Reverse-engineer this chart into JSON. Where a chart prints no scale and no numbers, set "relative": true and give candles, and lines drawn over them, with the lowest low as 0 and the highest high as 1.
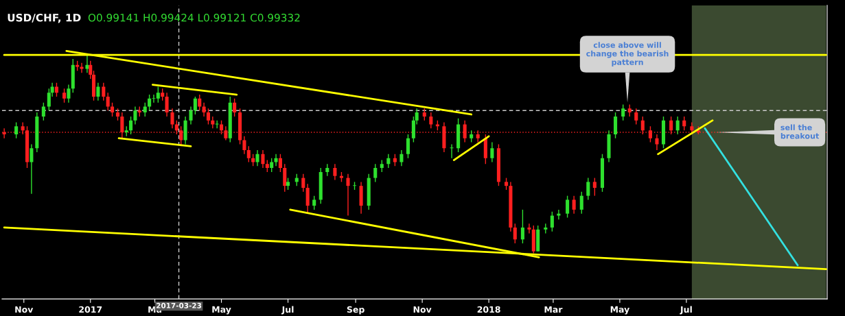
{
  "chart_data": {
    "type": "candlestick",
    "title": "USD/CHF, 1D",
    "subtitle": "O0.99141 H0.99424 L0.99121 C0.99332",
    "relative": true,
    "x": [
      "2016-10-14",
      "2016-10-25",
      "2016-10-31",
      "2016-11-04",
      "2016-11-08",
      "2016-11-13",
      "2016-11-19",
      "2016-11-24",
      "2016-11-27",
      "2016-12-01",
      "2016-12-08",
      "2016-12-12",
      "2016-12-16",
      "2016-12-20",
      "2016-12-24",
      "2016-12-29",
      "2017-01-01",
      "2017-01-04",
      "2017-01-08",
      "2017-01-13",
      "2017-01-17",
      "2017-01-21",
      "2017-01-26",
      "2017-01-30",
      "2017-02-03",
      "2017-02-07",
      "2017-02-11",
      "2017-02-15",
      "2017-02-20",
      "2017-02-24",
      "2017-02-28",
      "2017-03-04",
      "2017-03-08",
      "2017-03-12",
      "2017-03-17",
      "2017-03-21",
      "2017-03-25",
      "2017-03-29",
      "2017-04-03",
      "2017-04-07",
      "2017-04-11",
      "2017-04-15",
      "2017-04-19",
      "2017-04-23",
      "2017-04-27",
      "2017-05-01",
      "2017-05-05",
      "2017-05-09",
      "2017-05-13",
      "2017-05-18",
      "2017-05-22",
      "2017-05-26",
      "2017-05-30",
      "2017-06-03",
      "2017-06-08",
      "2017-06-12",
      "2017-06-16",
      "2017-06-20",
      "2017-06-24",
      "2017-06-28",
      "2017-07-01",
      "2017-07-09",
      "2017-07-15",
      "2017-07-19",
      "2017-07-25",
      "2017-07-31",
      "2017-08-06",
      "2017-08-13",
      "2017-08-19",
      "2017-08-25",
      "2017-08-31",
      "2017-09-06",
      "2017-09-13",
      "2017-09-19",
      "2017-09-25",
      "2017-10-01",
      "2017-10-07",
      "2017-10-13",
      "2017-10-19",
      "2017-10-24",
      "2017-10-27",
      "2017-11-03",
      "2017-11-09",
      "2017-11-15",
      "2017-11-21",
      "2017-11-28",
      "2017-12-04",
      "2017-12-10",
      "2017-12-16",
      "2017-12-22",
      "2017-12-29",
      "2018-01-04",
      "2018-01-10",
      "2018-01-17",
      "2018-01-21",
      "2018-01-25",
      "2018-02-01",
      "2018-02-07",
      "2018-02-11",
      "2018-02-15",
      "2018-02-22",
      "2018-02-28",
      "2018-03-06",
      "2018-03-14",
      "2018-03-20",
      "2018-03-27",
      "2018-04-02",
      "2018-04-08",
      "2018-04-15",
      "2018-04-21",
      "2018-04-27",
      "2018-05-04",
      "2018-05-10",
      "2018-05-16",
      "2018-05-22",
      "2018-05-29",
      "2018-06-04",
      "2018-06-10",
      "2018-06-17",
      "2018-06-23",
      "2018-06-29",
      "2018-07-06",
      "2018-07-12"
    ],
    "ohlc": [
      [
        0.61,
        0.63,
        0.58,
        0.6
      ],
      [
        0.6,
        0.66,
        0.58,
        0.64
      ],
      [
        0.64,
        0.66,
        0.6,
        0.62
      ],
      [
        0.62,
        0.64,
        0.43,
        0.46
      ],
      [
        0.46,
        0.55,
        0.3,
        0.53
      ],
      [
        0.53,
        0.71,
        0.51,
        0.69
      ],
      [
        0.69,
        0.76,
        0.67,
        0.74
      ],
      [
        0.74,
        0.83,
        0.72,
        0.81
      ],
      [
        0.81,
        0.86,
        0.79,
        0.84
      ],
      [
        0.84,
        0.86,
        0.79,
        0.81
      ],
      [
        0.81,
        0.83,
        0.76,
        0.78
      ],
      [
        0.78,
        0.85,
        0.76,
        0.83
      ],
      [
        0.83,
        0.98,
        0.81,
        0.95
      ],
      [
        0.95,
        0.97,
        0.92,
        0.94
      ],
      [
        0.94,
        0.96,
        0.91,
        0.93
      ],
      [
        0.93,
        1.0,
        0.91,
        0.95
      ],
      [
        0.95,
        0.97,
        0.88,
        0.9
      ],
      [
        0.9,
        0.92,
        0.77,
        0.79
      ],
      [
        0.79,
        0.86,
        0.77,
        0.84
      ],
      [
        0.84,
        0.86,
        0.77,
        0.79
      ],
      [
        0.79,
        0.81,
        0.72,
        0.74
      ],
      [
        0.74,
        0.76,
        0.69,
        0.71
      ],
      [
        0.71,
        0.73,
        0.67,
        0.69
      ],
      [
        0.69,
        0.71,
        0.58,
        0.61
      ],
      [
        0.61,
        0.64,
        0.59,
        0.62
      ],
      [
        0.62,
        0.69,
        0.6,
        0.67
      ],
      [
        0.67,
        0.74,
        0.65,
        0.72
      ],
      [
        0.72,
        0.74,
        0.69,
        0.71
      ],
      [
        0.71,
        0.76,
        0.69,
        0.74
      ],
      [
        0.74,
        0.8,
        0.72,
        0.78
      ],
      [
        0.78,
        0.8,
        0.76,
        0.78
      ],
      [
        0.78,
        0.84,
        0.76,
        0.81
      ],
      [
        0.81,
        0.83,
        0.77,
        0.79
      ],
      [
        0.79,
        0.81,
        0.69,
        0.71
      ],
      [
        0.71,
        0.73,
        0.63,
        0.65
      ],
      [
        0.65,
        0.67,
        0.6,
        0.62
      ],
      [
        0.62,
        0.64,
        0.54,
        0.57
      ],
      [
        0.57,
        0.69,
        0.55,
        0.67
      ],
      [
        0.67,
        0.74,
        0.65,
        0.72
      ],
      [
        0.72,
        0.79,
        0.7,
        0.78
      ],
      [
        0.78,
        0.8,
        0.72,
        0.74
      ],
      [
        0.74,
        0.76,
        0.69,
        0.71
      ],
      [
        0.71,
        0.73,
        0.65,
        0.67
      ],
      [
        0.67,
        0.69,
        0.63,
        0.65
      ],
      [
        0.65,
        0.67,
        0.63,
        0.65
      ],
      [
        0.65,
        0.67,
        0.6,
        0.62
      ],
      [
        0.62,
        0.64,
        0.57,
        0.58
      ],
      [
        0.58,
        0.79,
        0.56,
        0.76
      ],
      [
        0.76,
        0.78,
        0.69,
        0.71
      ],
      [
        0.71,
        0.73,
        0.55,
        0.57
      ],
      [
        0.57,
        0.59,
        0.5,
        0.52
      ],
      [
        0.52,
        0.54,
        0.46,
        0.48
      ],
      [
        0.48,
        0.5,
        0.44,
        0.46
      ],
      [
        0.46,
        0.52,
        0.44,
        0.5
      ],
      [
        0.5,
        0.52,
        0.43,
        0.45
      ],
      [
        0.45,
        0.47,
        0.41,
        0.43
      ],
      [
        0.43,
        0.48,
        0.41,
        0.46
      ],
      [
        0.46,
        0.5,
        0.44,
        0.48
      ],
      [
        0.48,
        0.5,
        0.41,
        0.43
      ],
      [
        0.43,
        0.45,
        0.31,
        0.34
      ],
      [
        0.34,
        0.38,
        0.32,
        0.36
      ],
      [
        0.36,
        0.4,
        0.34,
        0.38
      ],
      [
        0.38,
        0.4,
        0.31,
        0.33
      ],
      [
        0.33,
        0.35,
        0.2,
        0.24
      ],
      [
        0.24,
        0.29,
        0.22,
        0.27
      ],
      [
        0.27,
        0.43,
        0.25,
        0.41
      ],
      [
        0.41,
        0.45,
        0.39,
        0.43
      ],
      [
        0.43,
        0.45,
        0.37,
        0.39
      ],
      [
        0.39,
        0.41,
        0.36,
        0.38
      ],
      [
        0.38,
        0.4,
        0.19,
        0.34
      ],
      [
        0.34,
        0.36,
        0.32,
        0.34
      ],
      [
        0.34,
        0.36,
        0.2,
        0.24
      ],
      [
        0.24,
        0.4,
        0.22,
        0.38
      ],
      [
        0.38,
        0.45,
        0.36,
        0.43
      ],
      [
        0.43,
        0.47,
        0.41,
        0.45
      ],
      [
        0.45,
        0.5,
        0.43,
        0.48
      ],
      [
        0.48,
        0.5,
        0.44,
        0.46
      ],
      [
        0.46,
        0.52,
        0.44,
        0.5
      ],
      [
        0.5,
        0.6,
        0.48,
        0.58
      ],
      [
        0.58,
        0.69,
        0.56,
        0.67
      ],
      [
        0.67,
        0.73,
        0.65,
        0.71
      ],
      [
        0.71,
        0.73,
        0.67,
        0.69
      ],
      [
        0.69,
        0.71,
        0.63,
        0.65
      ],
      [
        0.65,
        0.67,
        0.62,
        0.64
      ],
      [
        0.64,
        0.66,
        0.51,
        0.53
      ],
      [
        0.53,
        0.55,
        0.48,
        0.53
      ],
      [
        0.53,
        0.68,
        0.51,
        0.65
      ],
      [
        0.65,
        0.67,
        0.56,
        0.58
      ],
      [
        0.58,
        0.62,
        0.56,
        0.6
      ],
      [
        0.6,
        0.62,
        0.56,
        0.58
      ],
      [
        0.58,
        0.6,
        0.45,
        0.48
      ],
      [
        0.48,
        0.56,
        0.46,
        0.53
      ],
      [
        0.53,
        0.55,
        0.34,
        0.36
      ],
      [
        0.36,
        0.38,
        0.32,
        0.34
      ],
      [
        0.34,
        0.36,
        0.11,
        0.13
      ],
      [
        0.13,
        0.15,
        0.05,
        0.07
      ],
      [
        0.07,
        0.22,
        0.05,
        0.13
      ],
      [
        0.13,
        0.15,
        0.1,
        0.12
      ],
      [
        0.12,
        0.14,
        0.0,
        0.01
      ],
      [
        0.01,
        0.14,
        0.01,
        0.12
      ],
      [
        0.12,
        0.15,
        0.1,
        0.13
      ],
      [
        0.13,
        0.21,
        0.11,
        0.19
      ],
      [
        0.19,
        0.22,
        0.17,
        0.2
      ],
      [
        0.2,
        0.29,
        0.18,
        0.27
      ],
      [
        0.27,
        0.29,
        0.2,
        0.22
      ],
      [
        0.22,
        0.31,
        0.2,
        0.29
      ],
      [
        0.29,
        0.38,
        0.27,
        0.36
      ],
      [
        0.36,
        0.38,
        0.29,
        0.33
      ],
      [
        0.33,
        0.5,
        0.31,
        0.48
      ],
      [
        0.48,
        0.62,
        0.46,
        0.6
      ],
      [
        0.6,
        0.71,
        0.58,
        0.69
      ],
      [
        0.69,
        0.75,
        0.67,
        0.73
      ],
      [
        0.73,
        0.75,
        0.69,
        0.71
      ],
      [
        0.71,
        0.73,
        0.65,
        0.67
      ],
      [
        0.67,
        0.69,
        0.6,
        0.62
      ],
      [
        0.62,
        0.64,
        0.56,
        0.58
      ],
      [
        0.58,
        0.6,
        0.52,
        0.55
      ],
      [
        0.55,
        0.69,
        0.53,
        0.67
      ],
      [
        0.67,
        0.69,
        0.6,
        0.62
      ],
      [
        0.62,
        0.69,
        0.6,
        0.67
      ],
      [
        0.67,
        0.69,
        0.62,
        0.64
      ],
      [
        0.64,
        0.66,
        0.6,
        0.62
      ],
      [
        0.62,
        0.64,
        0.6,
        0.61
      ]
    ],
    "colors": [
      "#ff1f1f",
      "#2ee02e",
      "#ff1f1f",
      "#ff1f1f",
      "#2ee02e",
      "#2ee02e",
      "#2ee02e",
      "#2ee02e",
      "#2ee02e",
      "#ff1f1f",
      "#ff1f1f",
      "#2ee02e",
      "#2ee02e",
      "#ff1f1f",
      "#ff1f1f",
      "#2ee02e",
      "#ff1f1f",
      "#ff1f1f",
      "#2ee02e",
      "#ff1f1f",
      "#ff1f1f",
      "#ff1f1f",
      "#ff1f1f",
      "#ff1f1f",
      "#2ee02e",
      "#2ee02e",
      "#2ee02e",
      "#ff1f1f",
      "#2ee02e",
      "#2ee02e",
      "#2ee02e",
      "#2ee02e",
      "#ff1f1f",
      "#ff1f1f",
      "#ff1f1f",
      "#ff1f1f",
      "#ff1f1f",
      "#2ee02e",
      "#2ee02e",
      "#2ee02e",
      "#ff1f1f",
      "#ff1f1f",
      "#ff1f1f",
      "#ff1f1f",
      "#2ee02e",
      "#ff1f1f",
      "#ff1f1f",
      "#2ee02e",
      "#ff1f1f",
      "#ff1f1f",
      "#ff1f1f",
      "#ff1f1f",
      "#ff1f1f",
      "#2ee02e",
      "#ff1f1f",
      "#ff1f1f",
      "#2ee02e",
      "#2ee02e",
      "#ff1f1f",
      "#ff1f1f",
      "#2ee02e",
      "#2ee02e",
      "#ff1f1f",
      "#ff1f1f",
      "#2ee02e",
      "#2ee02e",
      "#2ee02e",
      "#ff1f1f",
      "#ff1f1f",
      "#ff1f1f",
      "#2ee02e",
      "#ff1f1f",
      "#2ee02e",
      "#2ee02e",
      "#2ee02e",
      "#2ee02e",
      "#ff1f1f",
      "#2ee02e",
      "#2ee02e",
      "#2ee02e",
      "#2ee02e",
      "#ff1f1f",
      "#ff1f1f",
      "#ff1f1f",
      "#ff1f1f",
      "#2ee02e",
      "#2ee02e",
      "#ff1f1f",
      "#2ee02e",
      "#ff1f1f",
      "#ff1f1f",
      "#2ee02e",
      "#ff1f1f",
      "#ff1f1f",
      "#ff1f1f",
      "#ff1f1f",
      "#2ee02e",
      "#ff1f1f",
      "#ff1f1f",
      "#2ee02e",
      "#2ee02e",
      "#2ee02e",
      "#2ee02e",
      "#2ee02e",
      "#ff1f1f",
      "#2ee02e",
      "#2ee02e",
      "#ff1f1f",
      "#2ee02e",
      "#2ee02e",
      "#2ee02e",
      "#2ee02e",
      "#ff1f1f",
      "#ff1f1f",
      "#ff1f1f",
      "#ff1f1f",
      "#ff1f1f",
      "#2ee02e",
      "#ff1f1f",
      "#2ee02e",
      "#ff1f1f",
      "#ff1f1f",
      "#ff1f1f"
    ],
    "series": [
      {
        "type": "line",
        "color": "#ffff00",
        "x": [
          "2016-10-14",
          "2018-11-06"
        ],
        "values": [
          1.0,
          1.0
        ]
      },
      {
        "type": "line",
        "color": "#ffff00",
        "x": [
          "2016-12-10",
          "2017-12-16"
        ],
        "values": [
          1.02,
          0.7
        ]
      },
      {
        "type": "line",
        "color": "#ffff00",
        "x": [
          "2016-10-14",
          "2018-11-06"
        ],
        "values": [
          0.13,
          -0.08
        ]
      },
      {
        "type": "line",
        "color": "#ffff00",
        "x": [
          "2017-01-27",
          "2017-04-03"
        ],
        "values": [
          0.58,
          0.54
        ]
      },
      {
        "type": "line",
        "color": "#ffff00",
        "x": [
          "2017-02-27",
          "2017-05-15"
        ],
        "values": [
          0.85,
          0.8
        ]
      },
      {
        "type": "line",
        "color": "#ffff00",
        "x": [
          "2017-07-03",
          "2018-02-16"
        ],
        "values": [
          0.22,
          -0.02
        ]
      },
      {
        "type": "line",
        "color": "#ffff00",
        "x": [
          "2017-11-30",
          "2018-01-01"
        ],
        "values": [
          0.47,
          0.59
        ]
      },
      {
        "type": "line",
        "color": "#ffff00",
        "x": [
          "2018-06-05",
          "2018-07-25"
        ],
        "values": [
          0.5,
          0.67
        ]
      },
      {
        "type": "line",
        "color": "#33e0e0",
        "x": [
          "2018-07-18",
          "2018-10-11"
        ],
        "values": [
          0.63,
          -0.06
        ]
      }
    ],
    "annotations": [
      {
        "text": "close above will\nchange the bearish\npattern",
        "x": "2018-05-08",
        "y": 0.75
      },
      {
        "text": "sell the\nbreakout",
        "x": "2018-07-26",
        "y": 0.61
      }
    ],
    "ref_lines": [
      {
        "axis": "x",
        "value": "2017-03-23",
        "label": "2017-03-23",
        "color": "#cccccc",
        "line_style": "dashed"
      },
      {
        "axis": "y",
        "value": 0.72,
        "color": "#cccccc",
        "line_style": "dashed"
      },
      {
        "axis": "y",
        "value": 0.61,
        "color": "#ff2020",
        "line_style": "dotted"
      }
    ],
    "bands": [
      {
        "axis": "x",
        "from": "2018-07-06",
        "to": "2018-11-06",
        "color": "#3b4a30"
      }
    ],
    "xlim": [
      "2016-10-12",
      "2018-11-07"
    ],
    "xticks": [
      {
        "value": "2016-11-01",
        "label": "Nov"
      },
      {
        "value": "2017-01-01",
        "label": "2017"
      },
      {
        "value": "2017-03-01",
        "label": "Ma"
      },
      {
        "value": "2017-05-01",
        "label": "May"
      },
      {
        "value": "2017-07-01",
        "label": "Jul"
      },
      {
        "value": "2017-09-01",
        "label": "Sep"
      },
      {
        "value": "2017-11-01",
        "label": "Nov"
      },
      {
        "value": "2018-01-01",
        "label": "2018"
      },
      {
        "value": "2018-03-01",
        "label": "Mar"
      },
      {
        "value": "2018-05-01",
        "label": "May"
      },
      {
        "value": "2018-07-01",
        "label": "Jul"
      }
    ],
    "legend": false
  }
}
